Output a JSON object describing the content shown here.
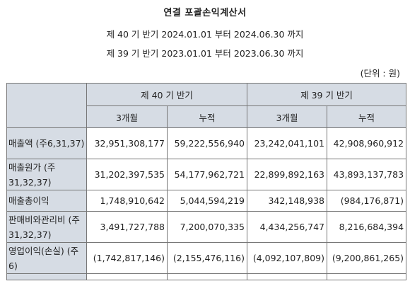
{
  "document": {
    "title": "연결 포괄손익계산서",
    "period_current": "제 40 기 반기 2024.01.01 부터 2024.06.30 까지",
    "period_prior": "제 39 기 반기 2023.01.01 부터 2023.06.30 까지",
    "unit": "(단위 : 원)"
  },
  "table": {
    "group_headers": [
      "제 40 기 반기",
      "제 39 기 반기"
    ],
    "sub_headers": [
      "3개월",
      "누적",
      "3개월",
      "누적"
    ],
    "rows": [
      {
        "label": "매출액 (주6,31,37)",
        "values": [
          "32,951,308,177",
          "59,222,556,940",
          "23,242,041,101",
          "42,908,960,912"
        ]
      },
      {
        "label": "매출원가 (주31,32,37)",
        "values": [
          "31,202,397,535",
          "54,177,962,721",
          "22,899,892,163",
          "43,893,137,783"
        ]
      },
      {
        "label": "매출총이익",
        "values": [
          "1,748,910,642",
          "5,044,594,219",
          "342,148,938",
          "(984,176,871)"
        ]
      },
      {
        "label": "판매비와관리비 (주31,32,37)",
        "values": [
          "3,491,727,788",
          "7,200,070,335",
          "4,434,256,747",
          "8,216,684,394"
        ]
      },
      {
        "label": "영업이익(손실) (주6)",
        "values": [
          "(1,742,817,146)",
          "(2,155,476,116)",
          "(4,092,107,809)",
          "(9,200,861,265)"
        ]
      }
    ]
  }
}
